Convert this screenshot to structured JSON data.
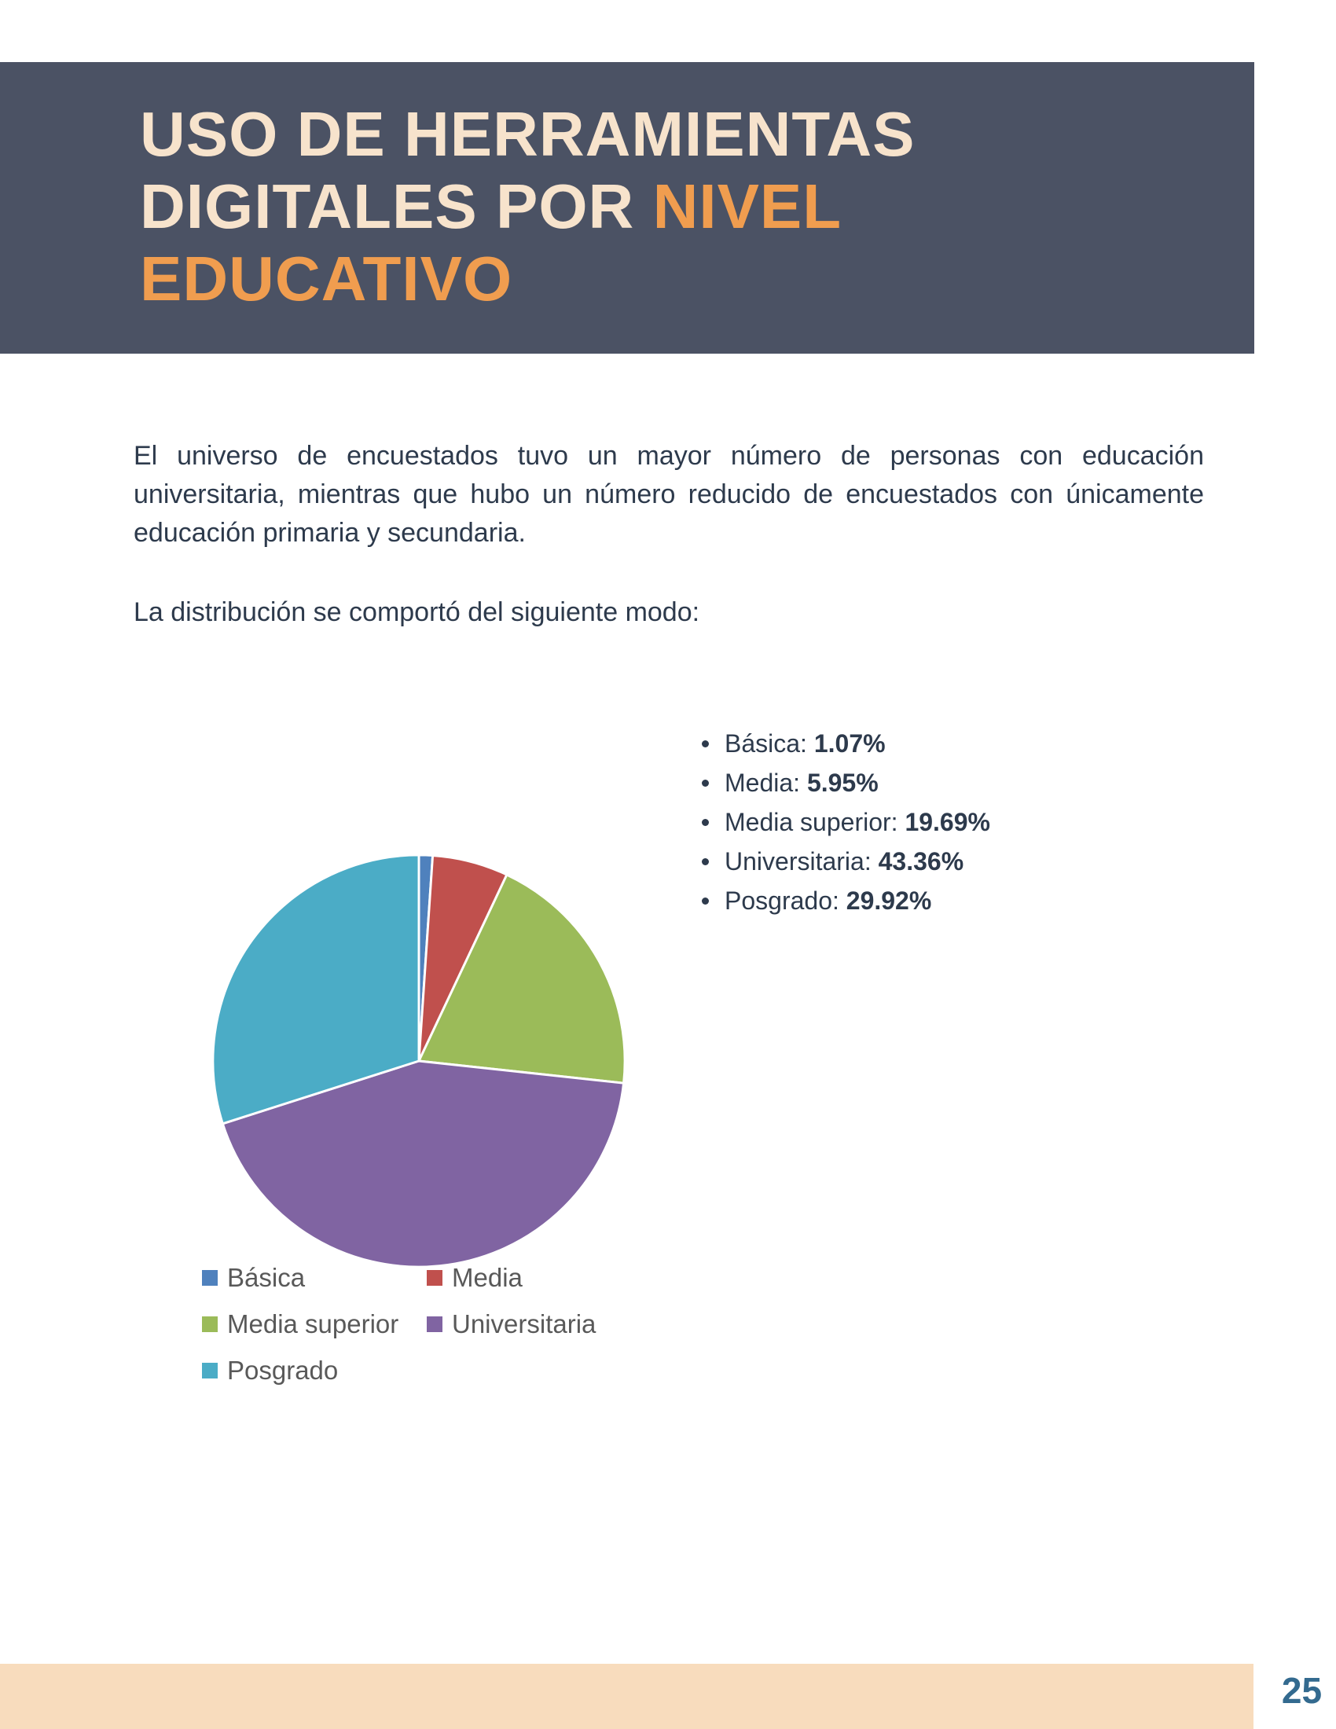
{
  "header": {
    "title_main": "USO DE HERRAMIENTAS DIGITALES POR ",
    "title_accent": "NIVEL EDUCATIVO",
    "background_color": "#4b5264",
    "title_main_color": "#f7e3cc",
    "title_accent_color": "#f09d4f"
  },
  "body": {
    "paragraph1": "El universo de encuestados tuvo un mayor número de personas con educación universitaria, mientras que hubo un número reducido de encuestados con únicamente educación primaria y secundaria.",
    "paragraph2": "La distribución se comportó del siguiente modo:"
  },
  "bullets": [
    {
      "label": "Básica:",
      "value": "1.07%"
    },
    {
      "label": "Media:",
      "value": "5.95%"
    },
    {
      "label": "Media superior:",
      "value": "19.69%"
    },
    {
      "label": "Universitaria:",
      "value": "43.36%"
    },
    {
      "label": "Posgrado:",
      "value": "29.92%"
    }
  ],
  "chart_data": {
    "type": "pie",
    "title": "",
    "categories": [
      "Básica",
      "Media",
      "Media superior",
      "Universitaria",
      "Posgrado"
    ],
    "values": [
      1.07,
      5.95,
      19.69,
      43.36,
      29.92
    ],
    "colors": [
      "#4F81BD",
      "#C0504D",
      "#9BBB59",
      "#8064A2",
      "#4BACC6"
    ],
    "start_angle_deg": -90,
    "direction": "clockwise",
    "legend_position": "bottom",
    "slice_border_color": "#ffffff"
  },
  "footer": {
    "band_color": "#f8dcbd",
    "page_number": "25"
  }
}
